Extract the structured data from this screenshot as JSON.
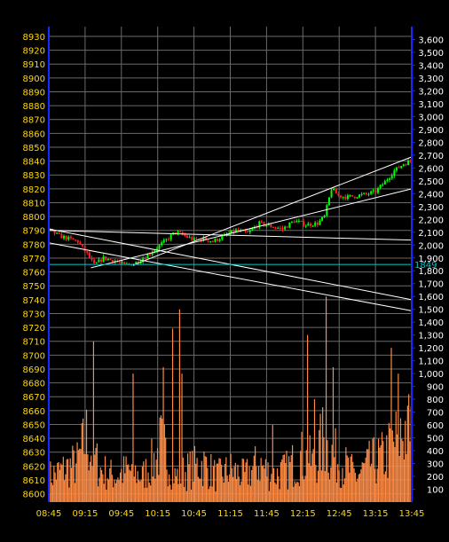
{
  "chart_data": {
    "type": "candlestick",
    "x_ticks": [
      "08:45",
      "09:15",
      "09:45",
      "10:15",
      "10:45",
      "11:15",
      "11:45",
      "12:15",
      "12:45",
      "13:15",
      "13:45"
    ],
    "left_axis": {
      "ticks": [
        8600,
        8610,
        8620,
        8630,
        8640,
        8650,
        8660,
        8670,
        8680,
        8690,
        8700,
        8710,
        8720,
        8730,
        8740,
        8750,
        8760,
        8770,
        8780,
        8790,
        8800,
        8810,
        8820,
        8830,
        8840,
        8850,
        8860,
        8870,
        8880,
        8890,
        8900,
        8910,
        8920,
        8930
      ],
      "range": [
        8594,
        8937
      ]
    },
    "right_axis": {
      "ticks": [
        "100",
        "200",
        "300",
        "400",
        "500",
        "600",
        "700",
        "800",
        "900",
        "1,000",
        "1,100",
        "1,200",
        "1,300",
        "1,400",
        "1,500",
        "1,600",
        "1,700",
        "1,800",
        "1,900",
        "2,000",
        "2,100",
        "2,200",
        "2,300",
        "2,400",
        "2,500",
        "2,600",
        "2,700",
        "2,800",
        "2,900",
        "3,000",
        "3,100",
        "3,200",
        "3,300",
        "3,400",
        "3,500",
        "3,600"
      ],
      "range": [
        0,
        3700
      ]
    },
    "marker": {
      "label": "1849",
      "value": 1849,
      "color": "#00c8c8"
    },
    "price_anchors": [
      [
        0,
        8790
      ],
      [
        4,
        8786
      ],
      [
        8,
        8784
      ],
      [
        12,
        8782
      ],
      [
        16,
        8773
      ],
      [
        19,
        8765
      ],
      [
        23,
        8770
      ],
      [
        28,
        8768
      ],
      [
        32,
        8765
      ],
      [
        36,
        8766
      ],
      [
        40,
        8770
      ],
      [
        45,
        8776
      ],
      [
        50,
        8783
      ],
      [
        54,
        8789
      ],
      [
        58,
        8786
      ],
      [
        62,
        8783
      ],
      [
        66,
        8784
      ],
      [
        70,
        8782
      ],
      [
        75,
        8786
      ],
      [
        80,
        8790
      ],
      [
        85,
        8788
      ],
      [
        90,
        8795
      ],
      [
        95,
        8793
      ],
      [
        100,
        8791
      ],
      [
        105,
        8797
      ],
      [
        110,
        8794
      ],
      [
        115,
        8795
      ],
      [
        118,
        8800
      ],
      [
        121,
        8820
      ],
      [
        124,
        8815
      ],
      [
        128,
        8814
      ],
      [
        132,
        8815
      ],
      [
        136,
        8816
      ],
      [
        140,
        8818
      ],
      [
        144,
        8825
      ],
      [
        148,
        8833
      ],
      [
        152,
        8838
      ],
      [
        155,
        8840
      ]
    ],
    "volume_anchors": [
      [
        0,
        200
      ],
      [
        6,
        250
      ],
      [
        12,
        300
      ],
      [
        16,
        500
      ],
      [
        18,
        400
      ],
      [
        22,
        250
      ],
      [
        28,
        200
      ],
      [
        34,
        250
      ],
      [
        40,
        200
      ],
      [
        46,
        350
      ],
      [
        48,
        450
      ],
      [
        52,
        300
      ],
      [
        54,
        200
      ],
      [
        60,
        250
      ],
      [
        66,
        300
      ],
      [
        72,
        200
      ],
      [
        78,
        250
      ],
      [
        84,
        200
      ],
      [
        90,
        300
      ],
      [
        96,
        200
      ],
      [
        102,
        250
      ],
      [
        108,
        350
      ],
      [
        114,
        300
      ],
      [
        118,
        500
      ],
      [
        120,
        400
      ],
      [
        126,
        300
      ],
      [
        132,
        200
      ],
      [
        138,
        300
      ],
      [
        144,
        350
      ],
      [
        150,
        500
      ],
      [
        152,
        550
      ],
      [
        155,
        600
      ]
    ],
    "volume_spikes": [
      [
        19,
        1250
      ],
      [
        36,
        1000
      ],
      [
        49,
        1050
      ],
      [
        53,
        1350
      ],
      [
        56,
        1500
      ],
      [
        57,
        1000
      ],
      [
        96,
        600
      ],
      [
        111,
        1300
      ],
      [
        114,
        800
      ],
      [
        119,
        1600
      ],
      [
        122,
        1050
      ],
      [
        147,
        1200
      ],
      [
        150,
        1000
      ],
      [
        154,
        750
      ]
    ],
    "trend_lines": [
      [
        [
          0,
          8790
        ],
        [
          155,
          8783
        ]
      ],
      [
        [
          0,
          8791
        ],
        [
          155,
          8740
        ]
      ],
      [
        [
          0,
          8781
        ],
        [
          155,
          8732
        ]
      ],
      [
        [
          18,
          8763
        ],
        [
          155,
          8820
        ]
      ],
      [
        [
          36,
          8765
        ],
        [
          155,
          8843
        ]
      ]
    ],
    "colors": {
      "up": "#00ff00",
      "down": "#ff2020",
      "volume": "#ff8c45",
      "grid": "#6a6a6a",
      "axis": "#1a2aff",
      "label": "#ffd800",
      "trend": "#ffffff",
      "right_label": "#ffffff"
    }
  }
}
